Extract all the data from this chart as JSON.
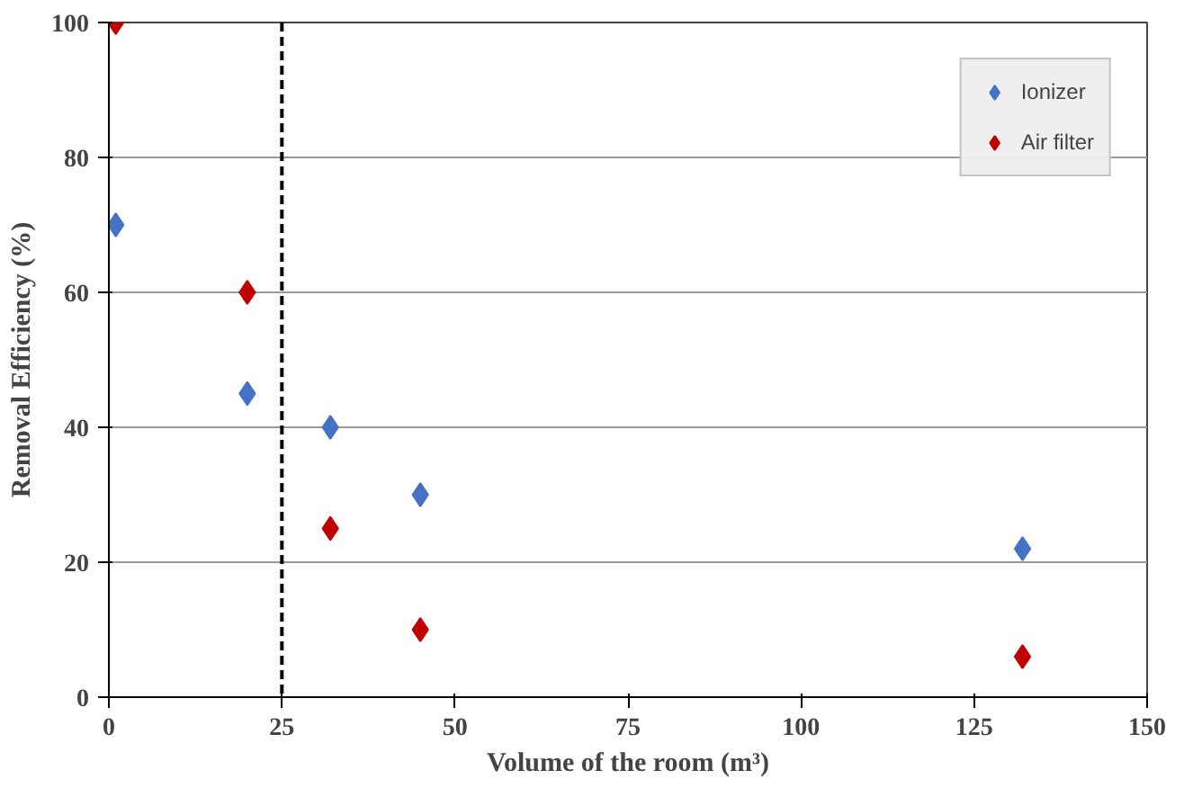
{
  "chart_data": {
    "type": "scatter",
    "xlabel": "Volume of the room (m³)",
    "ylabel": "Removal Efficiency (%)",
    "x": [
      1,
      20,
      32,
      45,
      132
    ],
    "series": [
      {
        "name": "Ionizer",
        "color": "#4472c4",
        "values": [
          70,
          45,
          40,
          30,
          22
        ]
      },
      {
        "name": "Air filter",
        "color": "#c00000",
        "values": [
          100,
          60,
          25,
          10,
          6
        ]
      }
    ],
    "xlim": [
      0,
      150
    ],
    "xticks": [
      0,
      25,
      50,
      75,
      100,
      125,
      150
    ],
    "ylim": [
      0,
      100
    ],
    "yticks": [
      0,
      20,
      40,
      60,
      80,
      100
    ],
    "ref_lines": [
      {
        "axis": "x",
        "value": 25,
        "color": "#000000",
        "line_style": "dashed"
      }
    ],
    "grid": "y",
    "legend": "top right",
    "marker": "diamond"
  }
}
